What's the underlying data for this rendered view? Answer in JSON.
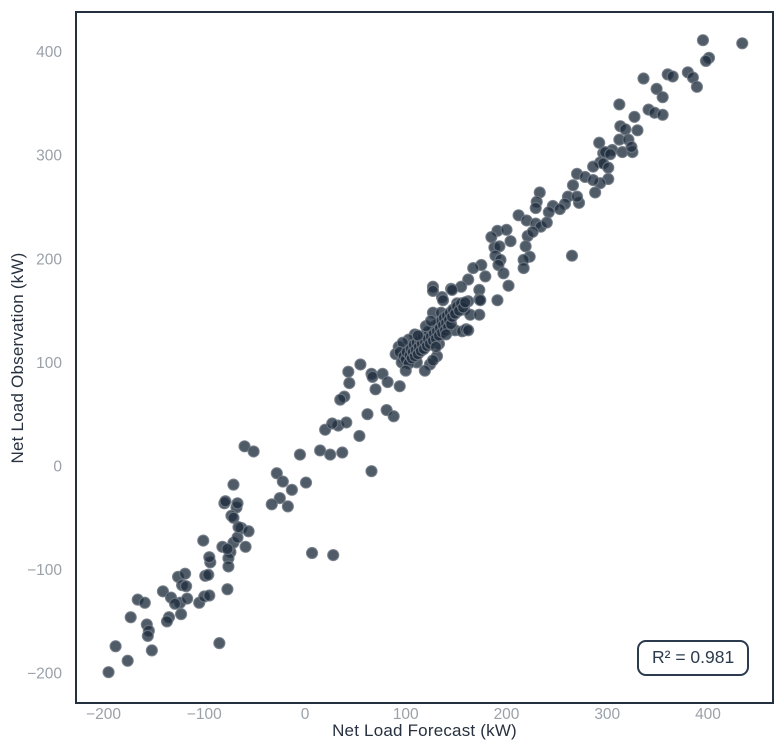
{
  "chart_data": {
    "type": "scatter",
    "title": "",
    "xlabel": "Net Load Forecast (kW)",
    "ylabel": "Net Load Observation (kW)",
    "annotation_text": "R² = 0.981",
    "grid": false,
    "legend_position": "none",
    "xlim": [
      -227,
      464
    ],
    "ylim": [
      -230,
      438
    ],
    "x_ticks": [
      -200,
      -100,
      0,
      100,
      200,
      300,
      400
    ],
    "y_ticks": [
      -200,
      -100,
      0,
      100,
      200,
      300,
      400
    ],
    "x_tick_labels": [
      "−200",
      "−100",
      "0",
      "100",
      "200",
      "300",
      "400"
    ],
    "y_tick_labels": [
      "−200",
      "−100",
      "0",
      "100",
      "200",
      "300",
      "400"
    ],
    "colors": {
      "marker_fill": "#1f2d3d",
      "marker_stroke": "#6e7883",
      "axis_border": "#25303e",
      "tick_label": "#9aa1a9",
      "axis_title": "#27313f",
      "annotation": "#2b3a4d",
      "background": "#ffffff"
    },
    "marker": {
      "radius": 5.5,
      "fill_opacity": 0.78,
      "stroke_opacity": 0.85,
      "stroke_width": 1.2
    },
    "points": [
      [
        -195,
        -199
      ],
      [
        -176,
        -188
      ],
      [
        -188,
        -174
      ],
      [
        -152,
        -178
      ],
      [
        -157,
        -153
      ],
      [
        -155,
        -159
      ],
      [
        -173,
        -146
      ],
      [
        -166,
        -129
      ],
      [
        -159,
        -132
      ],
      [
        -141,
        -121
      ],
      [
        -135,
        -146
      ],
      [
        -123,
        -143
      ],
      [
        -124,
        -132
      ],
      [
        -117,
        -128
      ],
      [
        -126,
        -107
      ],
      [
        -119,
        -104
      ],
      [
        -105,
        -132
      ],
      [
        -100,
        -126
      ],
      [
        -95,
        -125
      ],
      [
        -99,
        -106
      ],
      [
        -94,
        -93
      ],
      [
        -95,
        -88
      ],
      [
        -101,
        -72
      ],
      [
        -85,
        -171
      ],
      [
        -77,
        -119
      ],
      [
        -74,
        -83
      ],
      [
        -76,
        -89
      ],
      [
        -71,
        -74
      ],
      [
        -67,
        -69
      ],
      [
        -63,
        -60
      ],
      [
        -59,
        -78
      ],
      [
        -56,
        -63
      ],
      [
        -80,
        -36
      ],
      [
        -68,
        -40
      ],
      [
        -73,
        -48
      ],
      [
        20,
        35
      ],
      [
        15,
        15
      ],
      [
        25,
        11
      ],
      [
        37,
        13
      ],
      [
        -60,
        19
      ],
      [
        -51,
        14
      ],
      [
        -5,
        11
      ],
      [
        -28,
        -7
      ],
      [
        -22,
        -15
      ],
      [
        -13,
        -23
      ],
      [
        1,
        -16
      ],
      [
        -25,
        -31
      ],
      [
        -33,
        -37
      ],
      [
        -17,
        -39
      ],
      [
        -71,
        -18
      ],
      [
        -79,
        -34
      ],
      [
        -67,
        -36
      ],
      [
        -71,
        -50
      ],
      [
        -66,
        -59
      ],
      [
        -82,
        -78
      ],
      [
        -77,
        -80
      ],
      [
        -76,
        -97
      ],
      [
        -96,
        -105
      ],
      [
        -122,
        -115
      ],
      [
        -118,
        -116
      ],
      [
        -133,
        -127
      ],
      [
        -129,
        -133
      ],
      [
        -156,
        -164
      ],
      [
        -137,
        -150
      ],
      [
        7,
        -84
      ],
      [
        28,
        -86
      ],
      [
        43,
        91
      ],
      [
        55,
        98
      ],
      [
        66,
        89
      ],
      [
        67,
        86
      ],
      [
        77,
        89
      ],
      [
        70,
        74
      ],
      [
        82,
        81
      ],
      [
        94,
        77
      ],
      [
        44,
        80
      ],
      [
        39,
        67
      ],
      [
        35,
        64
      ],
      [
        33,
        39
      ],
      [
        41,
        42
      ],
      [
        27,
        41
      ],
      [
        62,
        50
      ],
      [
        81,
        54
      ],
      [
        88,
        48
      ],
      [
        54,
        29
      ],
      [
        66,
        -5
      ],
      [
        296,
        302
      ],
      [
        305,
        305
      ],
      [
        315,
        303
      ],
      [
        325,
        303
      ],
      [
        293,
        293
      ],
      [
        296,
        292
      ],
      [
        286,
        289
      ],
      [
        301,
        277
      ],
      [
        293,
        273
      ],
      [
        270,
        282
      ],
      [
        278,
        279
      ],
      [
        288,
        264
      ],
      [
        266,
        271
      ],
      [
        261,
        260
      ],
      [
        272,
        254
      ],
      [
        258,
        253
      ],
      [
        233,
        264
      ],
      [
        230,
        255
      ],
      [
        229,
        249
      ],
      [
        246,
        251
      ],
      [
        242,
        245
      ],
      [
        253,
        248
      ],
      [
        212,
        242
      ],
      [
        220,
        237
      ],
      [
        229,
        234
      ],
      [
        234,
        231
      ],
      [
        240,
        235
      ],
      [
        221,
        222
      ],
      [
        226,
        226
      ],
      [
        191,
        227
      ],
      [
        200,
        228
      ],
      [
        185,
        221
      ],
      [
        204,
        217
      ],
      [
        188,
        211
      ],
      [
        193,
        212
      ],
      [
        219,
        212
      ],
      [
        223,
        202
      ],
      [
        217,
        199
      ],
      [
        265,
        203
      ],
      [
        217,
        191
      ],
      [
        202,
        174
      ],
      [
        189,
        203
      ],
      [
        194,
        199
      ],
      [
        192,
        194
      ],
      [
        197,
        186
      ],
      [
        175,
        194
      ],
      [
        179,
        183
      ],
      [
        167,
        191
      ],
      [
        162,
        180
      ],
      [
        173,
        170
      ],
      [
        155,
        173
      ],
      [
        145,
        171
      ],
      [
        127,
        173
      ],
      [
        136,
        163
      ],
      [
        151,
        157
      ],
      [
        158,
        151
      ],
      [
        164,
        146
      ],
      [
        286,
        276
      ],
      [
        270,
        260
      ],
      [
        395,
        411
      ],
      [
        434,
        408
      ],
      [
        401,
        394
      ],
      [
        398,
        391
      ],
      [
        360,
        378
      ],
      [
        365,
        376
      ],
      [
        380,
        380
      ],
      [
        385,
        375
      ],
      [
        389,
        366
      ],
      [
        336,
        374
      ],
      [
        349,
        364
      ],
      [
        355,
        356
      ],
      [
        312,
        349
      ],
      [
        341,
        344
      ],
      [
        347,
        341
      ],
      [
        355,
        339
      ],
      [
        327,
        337
      ],
      [
        313,
        328
      ],
      [
        318,
        325
      ],
      [
        330,
        324
      ],
      [
        312,
        315
      ],
      [
        321,
        315
      ],
      [
        324,
        308
      ],
      [
        292,
        312
      ],
      [
        298,
        303
      ],
      [
        303,
        301
      ],
      [
        301,
        288
      ],
      [
        127,
        169
      ],
      [
        146,
        170
      ],
      [
        173,
        161
      ],
      [
        162,
        159
      ],
      [
        127,
        148
      ],
      [
        173,
        146
      ],
      [
        127,
        133
      ],
      [
        109,
        127
      ],
      [
        103,
        122
      ],
      [
        93,
        115
      ],
      [
        90,
        108
      ],
      [
        98,
        104
      ],
      [
        111,
        100
      ],
      [
        131,
        106
      ],
      [
        124,
        98
      ],
      [
        119,
        92
      ],
      [
        97,
        119
      ],
      [
        94,
        110
      ],
      [
        103,
        103
      ],
      [
        127,
        102
      ],
      [
        130,
        133
      ],
      [
        135,
        148
      ],
      [
        137,
        160
      ],
      [
        141,
        138
      ],
      [
        149,
        131
      ],
      [
        156,
        130
      ],
      [
        160,
        132
      ],
      [
        133,
        118
      ],
      [
        174,
        160
      ],
      [
        191,
        160
      ],
      [
        162,
        131
      ],
      [
        96,
        100
      ],
      [
        98,
        106
      ],
      [
        100,
        103
      ],
      [
        101,
        110
      ],
      [
        103,
        99
      ],
      [
        104,
        107
      ],
      [
        105,
        113
      ],
      [
        106,
        104
      ],
      [
        107,
        110
      ],
      [
        108,
        117
      ],
      [
        109,
        106
      ],
      [
        110,
        112
      ],
      [
        111,
        119
      ],
      [
        112,
        108
      ],
      [
        113,
        115
      ],
      [
        114,
        122
      ],
      [
        115,
        111
      ],
      [
        116,
        118
      ],
      [
        117,
        125
      ],
      [
        118,
        113
      ],
      [
        119,
        120
      ],
      [
        120,
        127
      ],
      [
        121,
        116
      ],
      [
        122,
        123
      ],
      [
        123,
        130
      ],
      [
        124,
        118
      ],
      [
        125,
        125
      ],
      [
        126,
        132
      ],
      [
        127,
        121
      ],
      [
        128,
        128
      ],
      [
        129,
        135
      ],
      [
        130,
        123
      ],
      [
        131,
        130
      ],
      [
        132,
        137
      ],
      [
        133,
        126
      ],
      [
        134,
        133
      ],
      [
        135,
        140
      ],
      [
        136,
        129
      ],
      [
        137,
        136
      ],
      [
        138,
        143
      ],
      [
        139,
        131
      ],
      [
        140,
        138
      ],
      [
        141,
        145
      ],
      [
        142,
        134
      ],
      [
        143,
        141
      ],
      [
        144,
        148
      ],
      [
        145,
        137
      ],
      [
        146,
        144
      ],
      [
        147,
        151
      ],
      [
        149,
        147
      ],
      [
        151,
        154
      ],
      [
        153,
        150
      ],
      [
        155,
        157
      ],
      [
        157,
        153
      ],
      [
        159,
        158
      ],
      [
        100,
        92
      ],
      [
        112,
        126
      ],
      [
        120,
        135
      ],
      [
        140,
        127
      ],
      [
        130,
        115
      ],
      [
        125,
        140
      ]
    ]
  }
}
